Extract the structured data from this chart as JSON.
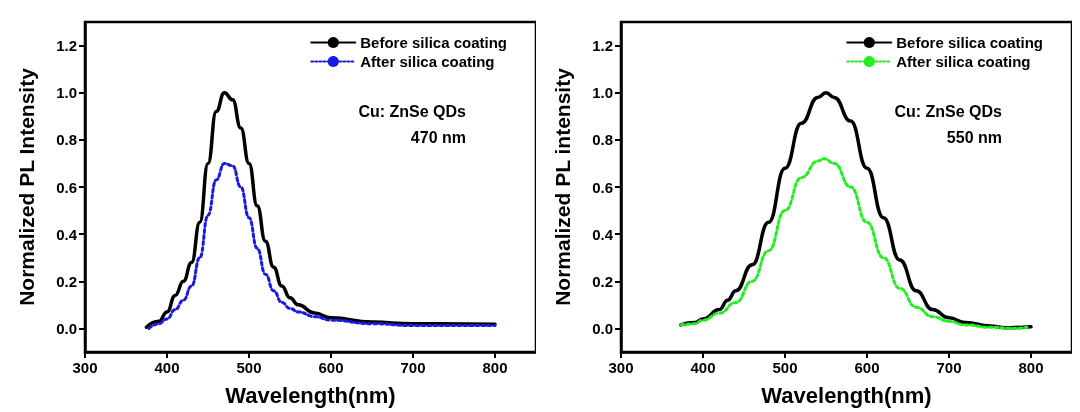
{
  "chart_data": [
    {
      "type": "line",
      "xlabel": "Wavelength(nm)",
      "ylabel": "Normalized PL Intensity",
      "annotations": [
        "Cu: ZnSe QDs",
        "470 nm"
      ],
      "xlim": [
        300,
        850
      ],
      "xticks": [
        300,
        400,
        500,
        600,
        700,
        800
      ],
      "ylim": [
        -0.1,
        1.3
      ],
      "yticks": [
        {
          "value": 0,
          "label": "0.0"
        },
        {
          "value": 0.2,
          "label": "0.2"
        },
        {
          "value": 0.4,
          "label": "0.4"
        },
        {
          "value": 0.6,
          "label": "0.6"
        },
        {
          "value": 0.8,
          "label": "0.8"
        },
        {
          "value": 1.0,
          "label": "1.0"
        },
        {
          "value": 1.2,
          "label": "1.2"
        }
      ],
      "grid": false,
      "legend": "top right",
      "marker": "none",
      "series": [
        {
          "name": "Before silica coating",
          "color": "#000000",
          "line_style": "solid",
          "x": [
            375,
            390,
            400,
            410,
            420,
            430,
            440,
            450,
            460,
            470,
            480,
            490,
            500,
            510,
            520,
            530,
            540,
            550,
            560,
            580,
            600,
            650,
            700,
            730,
            800
          ],
          "values": [
            0.005,
            0.03,
            0.07,
            0.14,
            0.2,
            0.28,
            0.45,
            0.7,
            0.92,
            1.0,
            0.97,
            0.85,
            0.7,
            0.52,
            0.37,
            0.26,
            0.18,
            0.13,
            0.1,
            0.065,
            0.045,
            0.027,
            0.02,
            0.02,
            0.018
          ]
        },
        {
          "name": "After silica coating",
          "color": "#1a1ae6",
          "line_style": "dotted",
          "x": [
            378,
            390,
            400,
            410,
            420,
            430,
            440,
            450,
            460,
            470,
            480,
            490,
            500,
            510,
            520,
            530,
            540,
            550,
            560,
            580,
            600,
            650,
            700,
            800
          ],
          "values": [
            0.0,
            0.02,
            0.04,
            0.08,
            0.12,
            0.18,
            0.3,
            0.48,
            0.63,
            0.7,
            0.69,
            0.6,
            0.47,
            0.34,
            0.23,
            0.16,
            0.11,
            0.085,
            0.07,
            0.05,
            0.035,
            0.02,
            0.012,
            0.012
          ]
        }
      ]
    },
    {
      "type": "line",
      "xlabel": "Wavelength(nm)",
      "ylabel": "Normalized PL intensity",
      "annotations": [
        "Cu: ZnSe QDs",
        "550 nm"
      ],
      "xlim": [
        300,
        850
      ],
      "xticks": [
        300,
        400,
        500,
        600,
        700,
        800
      ],
      "ylim": [
        -0.1,
        1.3
      ],
      "yticks": [
        {
          "value": 0,
          "label": "0.0"
        },
        {
          "value": 0.2,
          "label": "0.2"
        },
        {
          "value": 0.4,
          "label": "0.4"
        },
        {
          "value": 0.6,
          "label": "0.6"
        },
        {
          "value": 0.8,
          "label": "0.8"
        },
        {
          "value": 1.0,
          "label": "1.0"
        },
        {
          "value": 1.2,
          "label": "1.2"
        }
      ],
      "grid": false,
      "legend": "top right",
      "marker": "none",
      "series": [
        {
          "name": "Before silica coating",
          "color": "#000000",
          "line_style": "solid",
          "x": [
            373,
            390,
            400,
            420,
            430,
            440,
            460,
            480,
            500,
            520,
            540,
            550,
            560,
            580,
            600,
            620,
            640,
            660,
            680,
            700,
            720,
            750,
            770,
            790,
            800
          ],
          "values": [
            0.015,
            0.025,
            0.04,
            0.08,
            0.12,
            0.16,
            0.27,
            0.45,
            0.68,
            0.87,
            0.98,
            1.0,
            0.98,
            0.88,
            0.68,
            0.47,
            0.29,
            0.16,
            0.08,
            0.045,
            0.025,
            0.01,
            0.003,
            0.005,
            0.007
          ]
        },
        {
          "name": "After silica coating",
          "color": "#22ee22",
          "line_style": "dotted",
          "x": [
            373,
            390,
            400,
            420,
            440,
            460,
            480,
            500,
            520,
            540,
            548,
            560,
            580,
            600,
            620,
            640,
            660,
            680,
            700,
            720,
            750,
            780,
            795
          ],
          "values": [
            0.015,
            0.02,
            0.035,
            0.065,
            0.11,
            0.2,
            0.33,
            0.5,
            0.64,
            0.71,
            0.72,
            0.7,
            0.6,
            0.45,
            0.3,
            0.17,
            0.09,
            0.05,
            0.03,
            0.015,
            0.005,
            0.0,
            0.005
          ]
        }
      ]
    }
  ]
}
